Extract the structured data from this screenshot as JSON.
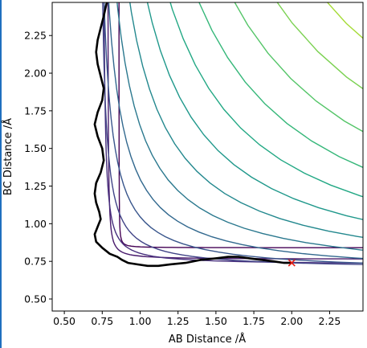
{
  "colors": {
    "contour_levels": [
      "#440154",
      "#481a6c",
      "#472f7d",
      "#414487",
      "#39568c",
      "#31688e",
      "#2a788e",
      "#23888e",
      "#1f988b",
      "#22a884",
      "#35b779",
      "#54c568",
      "#7ad151",
      "#a5db36",
      "#d2e21b",
      "#fde725"
    ],
    "trajectory": "#000000",
    "end_marker": "#e8190f",
    "left_edge": "#1f6fbf"
  },
  "chart_data": {
    "type": "contour",
    "xlabel": "AB Distance /Å",
    "ylabel": "BC Distance /Å",
    "xlim": [
      0.42,
      2.47
    ],
    "ylim": [
      0.42,
      2.47
    ],
    "xticks": [
      "0.50",
      "0.75",
      "1.00",
      "1.25",
      "1.50",
      "1.75",
      "2.00",
      "2.25"
    ],
    "yticks": [
      "0.50",
      "0.75",
      "1.00",
      "1.25",
      "1.50",
      "1.75",
      "2.00",
      "2.25"
    ],
    "xtick_values": [
      0.5,
      0.75,
      1.0,
      1.25,
      1.5,
      1.75,
      2.0,
      2.25
    ],
    "ytick_values": [
      0.5,
      0.75,
      1.0,
      1.25,
      1.5,
      1.75,
      2.0,
      2.25
    ],
    "trajectory": {
      "x": [
        0.78,
        0.76,
        0.74,
        0.72,
        0.71,
        0.72,
        0.74,
        0.76,
        0.75,
        0.72,
        0.7,
        0.72,
        0.75,
        0.76,
        0.74,
        0.71,
        0.7,
        0.71,
        0.73,
        0.74,
        0.72,
        0.7,
        0.71,
        0.75,
        0.8,
        0.85,
        0.88,
        0.92,
        0.98,
        1.05,
        1.12,
        1.2,
        1.3,
        1.4,
        1.5,
        1.58,
        1.65,
        1.72,
        1.8,
        1.88,
        1.95,
        2.0
      ],
      "y": [
        2.47,
        2.38,
        2.3,
        2.22,
        2.14,
        2.06,
        1.98,
        1.9,
        1.82,
        1.74,
        1.66,
        1.58,
        1.5,
        1.42,
        1.34,
        1.27,
        1.2,
        1.14,
        1.08,
        1.03,
        0.98,
        0.93,
        0.88,
        0.84,
        0.8,
        0.78,
        0.76,
        0.74,
        0.73,
        0.72,
        0.72,
        0.73,
        0.74,
        0.76,
        0.77,
        0.78,
        0.78,
        0.77,
        0.76,
        0.75,
        0.74,
        0.74
      ]
    },
    "end_point": {
      "x": 2.0,
      "y": 0.74,
      "marker": "x"
    },
    "grid": false,
    "legend": "none"
  }
}
